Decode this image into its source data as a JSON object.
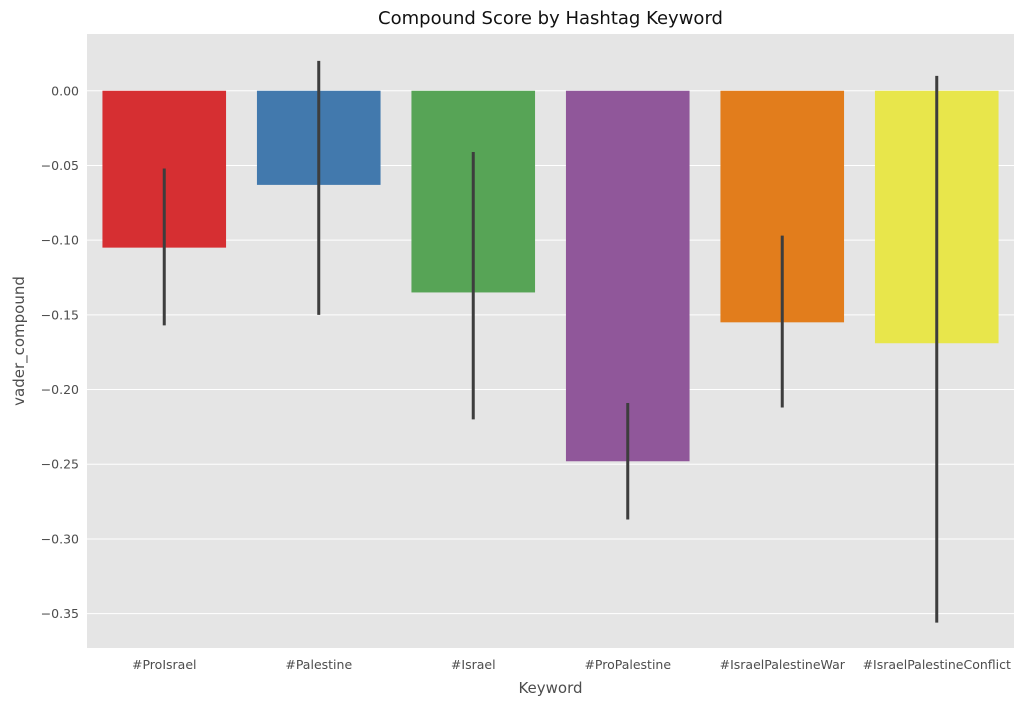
{
  "chart_data": {
    "type": "bar",
    "title": "Compound Score by Hashtag Keyword",
    "xlabel": "Keyword",
    "ylabel": "vader_compound",
    "categories": [
      "#ProIsrael",
      "#Palestine",
      "#Israel",
      "#ProPalestine",
      "#IsraelPalestineWar",
      "#IsraelPalestineConflict"
    ],
    "values": [
      -0.105,
      -0.063,
      -0.135,
      -0.248,
      -0.155,
      -0.169
    ],
    "error_low": [
      -0.157,
      -0.15,
      -0.22,
      -0.287,
      -0.212,
      -0.356
    ],
    "error_high": [
      -0.052,
      0.02,
      -0.041,
      -0.209,
      -0.097,
      0.01
    ],
    "colors": [
      "#d62f32",
      "#4279ad",
      "#57a456",
      "#90579a",
      "#e27d1c",
      "#e8e64b"
    ],
    "error_color": "#3d3d3d",
    "yticks": [
      0.0,
      -0.05,
      -0.1,
      -0.15,
      -0.2,
      -0.25,
      -0.3,
      -0.35
    ],
    "ytick_labels": [
      "0.00",
      "−0.05",
      "−0.10",
      "−0.15",
      "−0.20",
      "−0.25",
      "−0.30",
      "−0.35"
    ],
    "ylim": [
      -0.373,
      0.038
    ],
    "grid": true,
    "background": "#e5e5e5",
    "grid_color": "#ffffff"
  }
}
